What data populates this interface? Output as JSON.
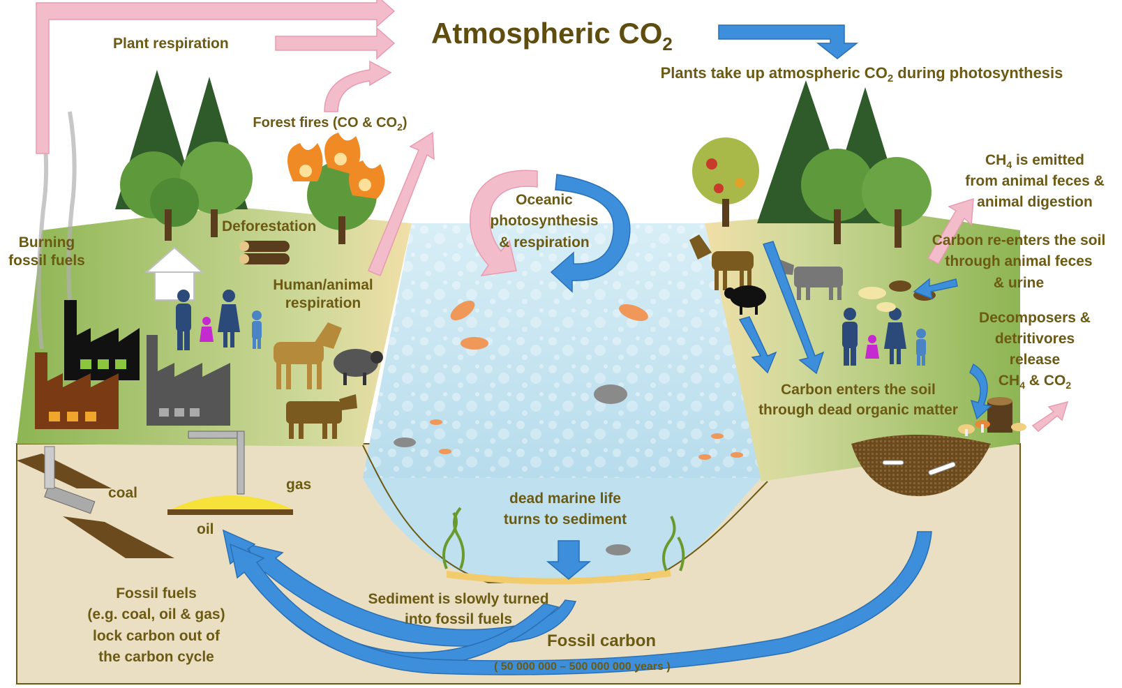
{
  "title": {
    "main": "Atmospheric CO",
    "sub": "2"
  },
  "labels": {
    "plant_respiration": "Plant respiration",
    "plants_uptake": {
      "pre": "Plants take up atmospheric CO",
      "sub": "2",
      "post": " during photosynthesis"
    },
    "forest_fires": {
      "pre": "Forest fires  (CO & CO",
      "sub": "2",
      "post": ")"
    },
    "burning_fossil_fuels": [
      "Burning",
      "fossil fuels"
    ],
    "deforestation": "Deforestation",
    "human_animal_respiration": [
      "Human/animal",
      "respiration"
    ],
    "oceanic": [
      "Oceanic",
      "photosynthesis",
      "& respiration"
    ],
    "ch4_emitted": {
      "line1_pre": "CH",
      "line1_sub": "4",
      "line1_post": " is emitted",
      "line2": "from animal feces &",
      "line3": "animal digestion"
    },
    "carbon_reenters": [
      "Carbon re-enters the soil",
      "through animal feces",
      "& urine"
    ],
    "decomposers": {
      "line1": "Decomposers &",
      "line2": "detritivores",
      "line3": "release",
      "line4_a": "CH",
      "line4_b": "4",
      "line4_c": " & CO",
      "line4_d": "2"
    },
    "carbon_enters_soil": [
      "Carbon enters the soil",
      "through dead organic matter"
    ],
    "coal": "coal",
    "gas": "gas",
    "oil": "oil",
    "dead_marine": [
      "dead marine life",
      "turns to sediment"
    ],
    "fossil_fuels_lock": [
      "Fossil fuels",
      "(e.g. coal, oil & gas)",
      "lock carbon out  of",
      "the carbon cycle"
    ],
    "sediment": [
      "Sediment is slowly turned",
      "into fossil fuels"
    ],
    "fossil_carbon": "Fossil carbon",
    "years": "( 50 000 000 – 500 000 000 years )"
  },
  "colors": {
    "text": "#6b5a14",
    "emission_arrow": "#f0b9c6",
    "uptake_arrow": "#3d8fdc",
    "ground": "#eadfc2",
    "grass": "#8fb550",
    "water": "#bfe1ef",
    "tree_dark": "#2f5a2a",
    "tree_light": "#5e9a3c"
  }
}
